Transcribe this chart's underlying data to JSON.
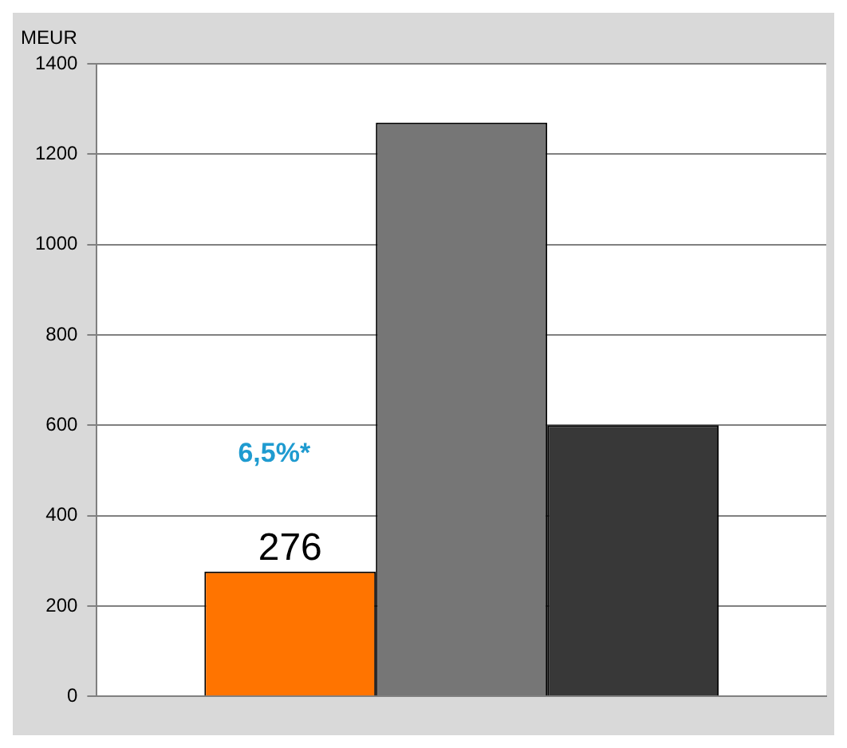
{
  "chart_data": {
    "type": "bar",
    "ylabel": "MEUR",
    "categories": [
      null
    ],
    "series": [
      {
        "color": "#ff7400",
        "values": [
          276
        ],
        "value_labels": [
          "276"
        ]
      },
      {
        "color": "#767676",
        "values": [
          1270
        ]
      },
      {
        "color": "#383838",
        "values": [
          600
        ]
      }
    ],
    "ylim": [
      0,
      1400
    ],
    "yticks": [
      0,
      200,
      400,
      600,
      800,
      1000,
      1200,
      1400
    ],
    "grid": "y",
    "legend": false,
    "annotations": [
      "6,5%*"
    ]
  }
}
